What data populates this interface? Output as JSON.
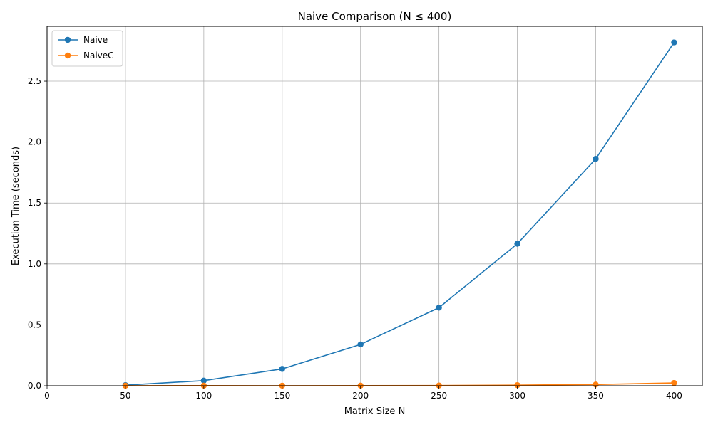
{
  "chart_data": {
    "type": "line",
    "title": "Naive Comparison (N ≤ 400)",
    "xlabel": "Matrix Size N",
    "ylabel": "Execution Time (seconds)",
    "x": [
      50,
      100,
      150,
      200,
      250,
      300,
      350,
      400
    ],
    "xlim": [
      0,
      418
    ],
    "ylim": [
      0,
      2.95
    ],
    "xticks": [
      0,
      50,
      100,
      150,
      200,
      250,
      300,
      350,
      400
    ],
    "xtick_labels": [
      "0",
      "50",
      "100",
      "150",
      "200",
      "250",
      "300",
      "350",
      "400"
    ],
    "yticks": [
      0.0,
      0.5,
      1.0,
      1.5,
      2.0,
      2.5
    ],
    "ytick_labels": [
      "0.0",
      "0.5",
      "1.0",
      "1.5",
      "2.0",
      "2.5"
    ],
    "grid": true,
    "legend_position": "upper-left",
    "series": [
      {
        "name": "Naive",
        "color": "#1f77b4",
        "values": [
          0.005,
          0.042,
          0.138,
          0.339,
          0.641,
          1.165,
          1.862,
          2.818
        ]
      },
      {
        "name": "NaiveC",
        "color": "#ff7f0e",
        "values": [
          0.0005,
          0.001,
          0.0005,
          0.001,
          0.002,
          0.005,
          0.01,
          0.023
        ]
      }
    ]
  }
}
